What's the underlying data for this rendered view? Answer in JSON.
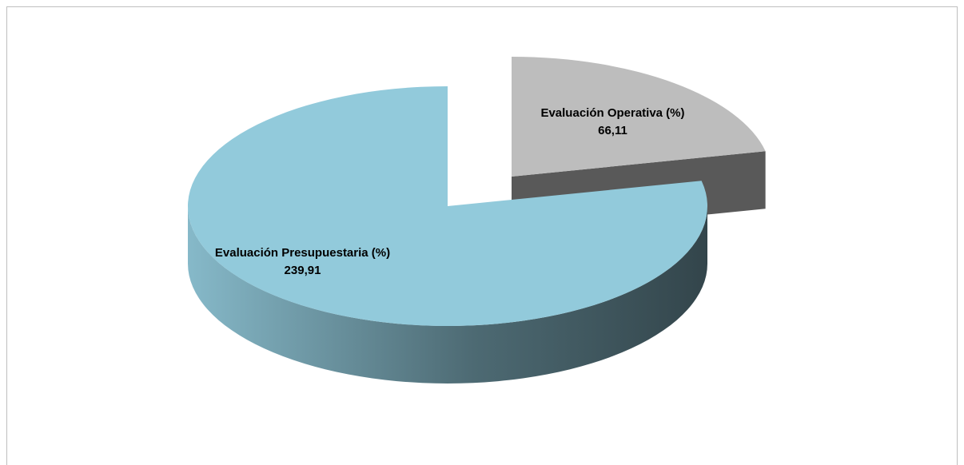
{
  "chart_data": {
    "type": "pie",
    "categories": [
      "Evaluación Presupuestaria (%)",
      "Evaluación Operativa (%)"
    ],
    "values": [
      239.91,
      66.11
    ],
    "value_labels": [
      "239,91",
      "66,11"
    ],
    "colors": [
      "#92cadb",
      "#bdbdbd"
    ],
    "side_colors": [
      "#4f6f79",
      "#595959"
    ],
    "exploded": [
      false,
      true
    ]
  }
}
